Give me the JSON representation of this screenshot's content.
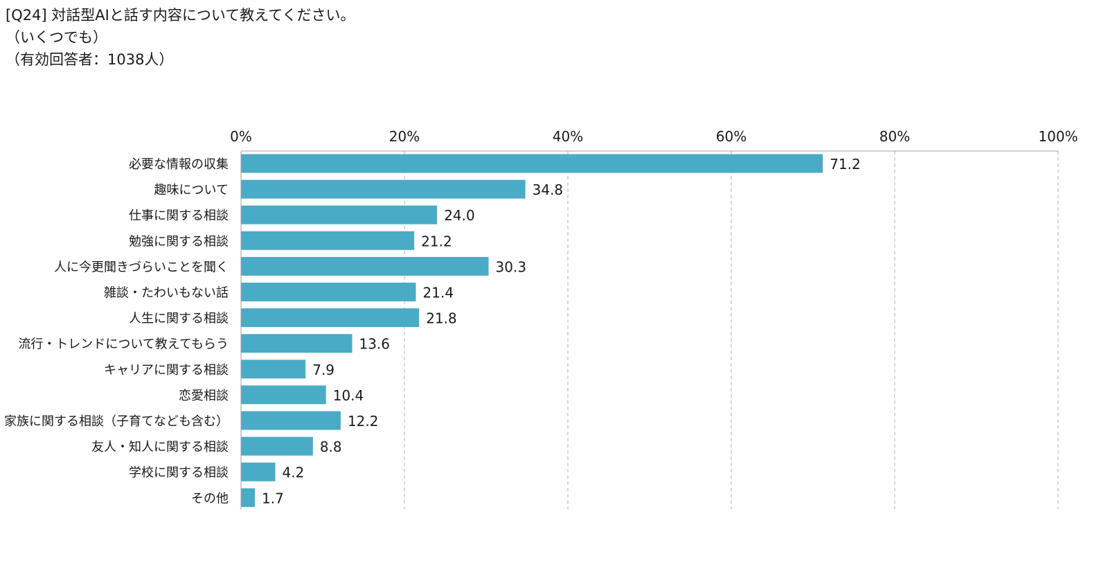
{
  "header": {
    "question": "[Q24] 対話型AIと話す内容について教えてください。",
    "note": "（いくつでも）",
    "respondents": "（有効回答者：1038人）"
  },
  "colors": {
    "bar": "#4aabc6",
    "grid": "#b3b3b3",
    "axis": "#a0a0a0",
    "text": "#1a1a1a"
  },
  "chart_data": {
    "type": "bar",
    "orientation": "horizontal",
    "title": "[Q24] 対話型AIと話す内容について教えてください。",
    "xlabel": "",
    "ylabel": "",
    "xlim": [
      0,
      100
    ],
    "ticks": [
      0,
      20,
      40,
      60,
      80,
      100
    ],
    "tick_labels": [
      "0%",
      "20%",
      "40%",
      "60%",
      "80%",
      "100%"
    ],
    "grid": true,
    "categories": [
      "必要な情報の収集",
      "趣味について",
      "仕事に関する相談",
      "勉強に関する相談",
      "人に今更聞きづらいことを聞く",
      "雑談・たわいもない話",
      "人生に関する相談",
      "流行・トレンドについて教えてもらう",
      "キャリアに関する相談",
      "恋愛相談",
      "家族に関する相談（子育てなども含む）",
      "友人・知人に関する相談",
      "学校に関する相談",
      "その他"
    ],
    "values": [
      71.2,
      34.8,
      24.0,
      21.2,
      30.3,
      21.4,
      21.8,
      13.6,
      7.9,
      10.4,
      12.2,
      8.8,
      4.2,
      1.7
    ],
    "value_labels": [
      "71.2",
      "34.8",
      "24.0",
      "21.2",
      "30.3",
      "21.4",
      "21.8",
      "13.6",
      "7.9",
      "10.4",
      "12.2",
      "8.8",
      "4.2",
      "1.7"
    ]
  }
}
